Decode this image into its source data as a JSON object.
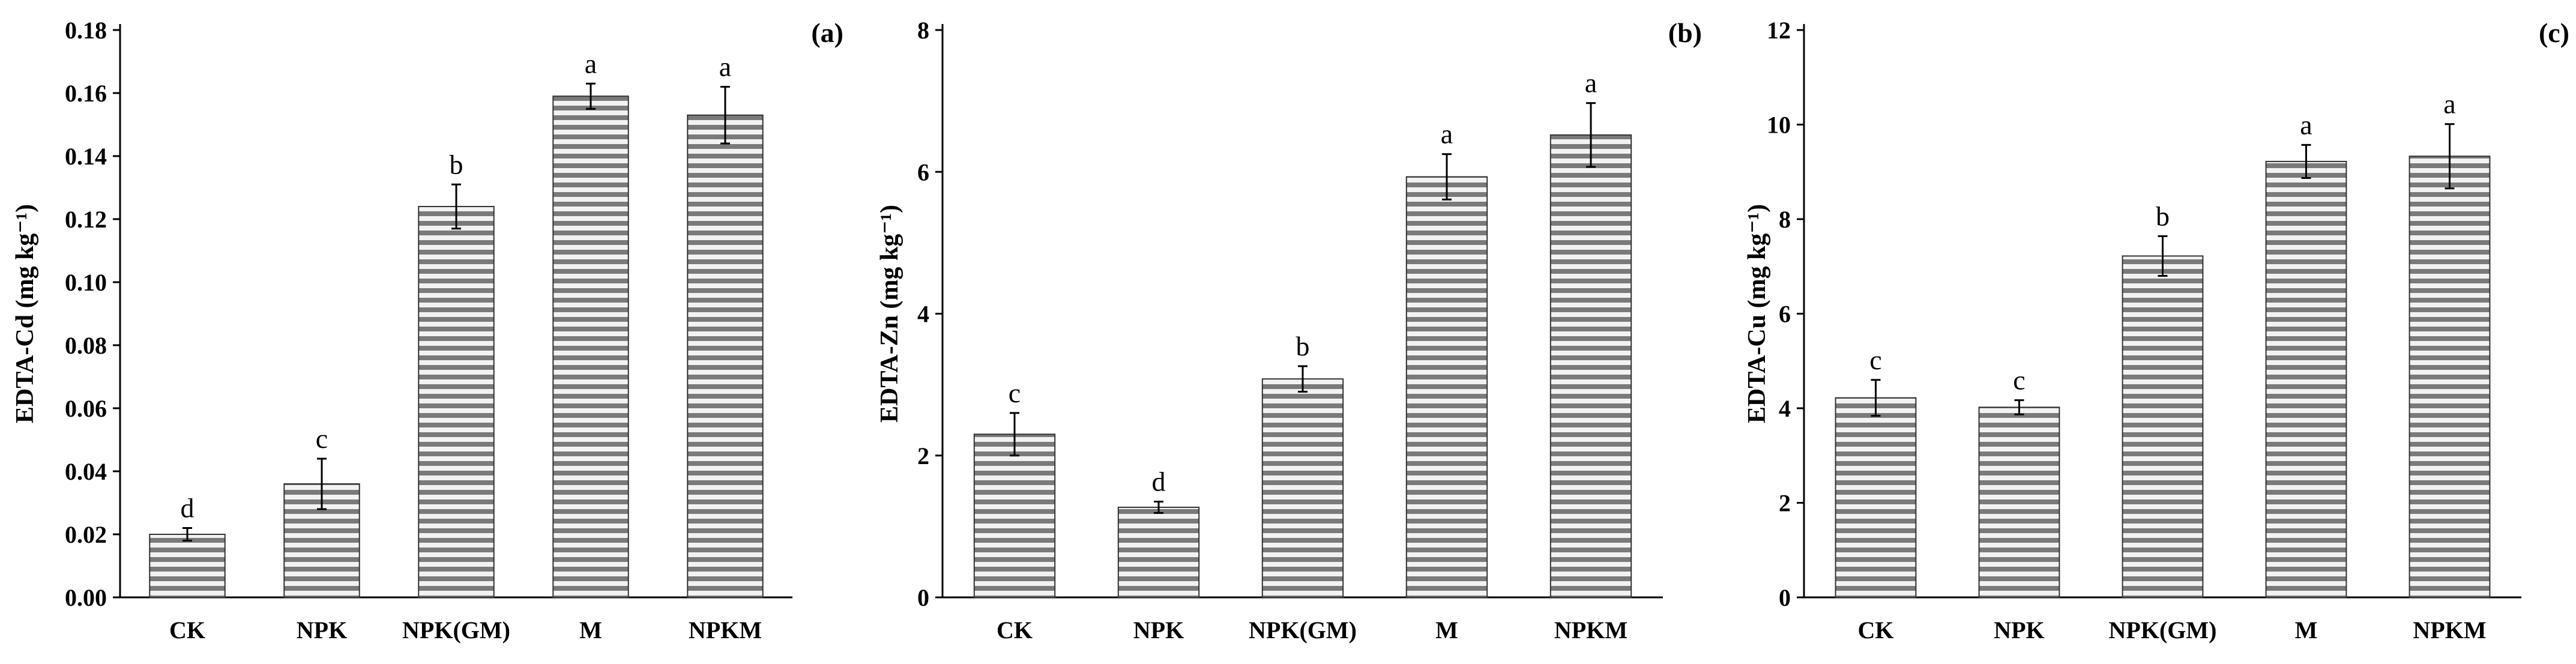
{
  "chart_data": [
    {
      "type": "bar",
      "panel_label": "(a)",
      "ylabel": "EDTA-Cd (mg kg⁻¹)",
      "xlabel": "",
      "categories": [
        "CK",
        "NPK",
        "NPK(GM)",
        "M",
        "NPKM"
      ],
      "values": [
        0.02,
        0.036,
        0.124,
        0.159,
        0.153
      ],
      "errors": [
        0.002,
        0.008,
        0.007,
        0.004,
        0.009
      ],
      "significance": [
        "d",
        "c",
        "b",
        "a",
        "a"
      ],
      "ylim": [
        0,
        0.18
      ],
      "yticks": [
        0,
        0.02,
        0.04,
        0.06,
        0.08,
        0.1,
        0.12,
        0.14,
        0.16,
        0.18
      ],
      "ytick_labels": [
        "0.00",
        "0.02",
        "0.04",
        "0.06",
        "0.08",
        "0.10",
        "0.12",
        "0.14",
        "0.16",
        "0.18"
      ]
    },
    {
      "type": "bar",
      "panel_label": "(b)",
      "ylabel": "EDTA-Zn (mg kg⁻¹)",
      "xlabel": "",
      "categories": [
        "CK",
        "NPK",
        "NPK(GM)",
        "M",
        "NPKM"
      ],
      "values": [
        2.3,
        1.27,
        3.08,
        5.93,
        6.52
      ],
      "errors": [
        0.3,
        0.08,
        0.18,
        0.32,
        0.45
      ],
      "significance": [
        "c",
        "d",
        "b",
        "a",
        "a"
      ],
      "ylim": [
        0,
        8
      ],
      "yticks": [
        0,
        2,
        4,
        6,
        8
      ],
      "ytick_labels": [
        "0",
        "2",
        "4",
        "6",
        "8"
      ]
    },
    {
      "type": "bar",
      "panel_label": "(c)",
      "ylabel": "EDTA-Cu (mg kg⁻¹)",
      "xlabel": "",
      "categories": [
        "CK",
        "NPK",
        "NPK(GM)",
        "M",
        "NPKM"
      ],
      "values": [
        4.22,
        4.02,
        7.22,
        9.22,
        9.33
      ],
      "errors": [
        0.38,
        0.15,
        0.42,
        0.35,
        0.68
      ],
      "significance": [
        "c",
        "c",
        "b",
        "a",
        "a"
      ],
      "ylim": [
        0,
        12
      ],
      "yticks": [
        0,
        2,
        4,
        6,
        8,
        10,
        12
      ],
      "ytick_labels": [
        "0",
        "2",
        "4",
        "6",
        "8",
        "10",
        "12"
      ]
    }
  ],
  "style": {
    "bar_stripe_dark": "#7a7a7a",
    "bar_stripe_light": "#f2f2f2",
    "bar_outline": "#333333",
    "axis_color": "#000000",
    "grid": false
  }
}
